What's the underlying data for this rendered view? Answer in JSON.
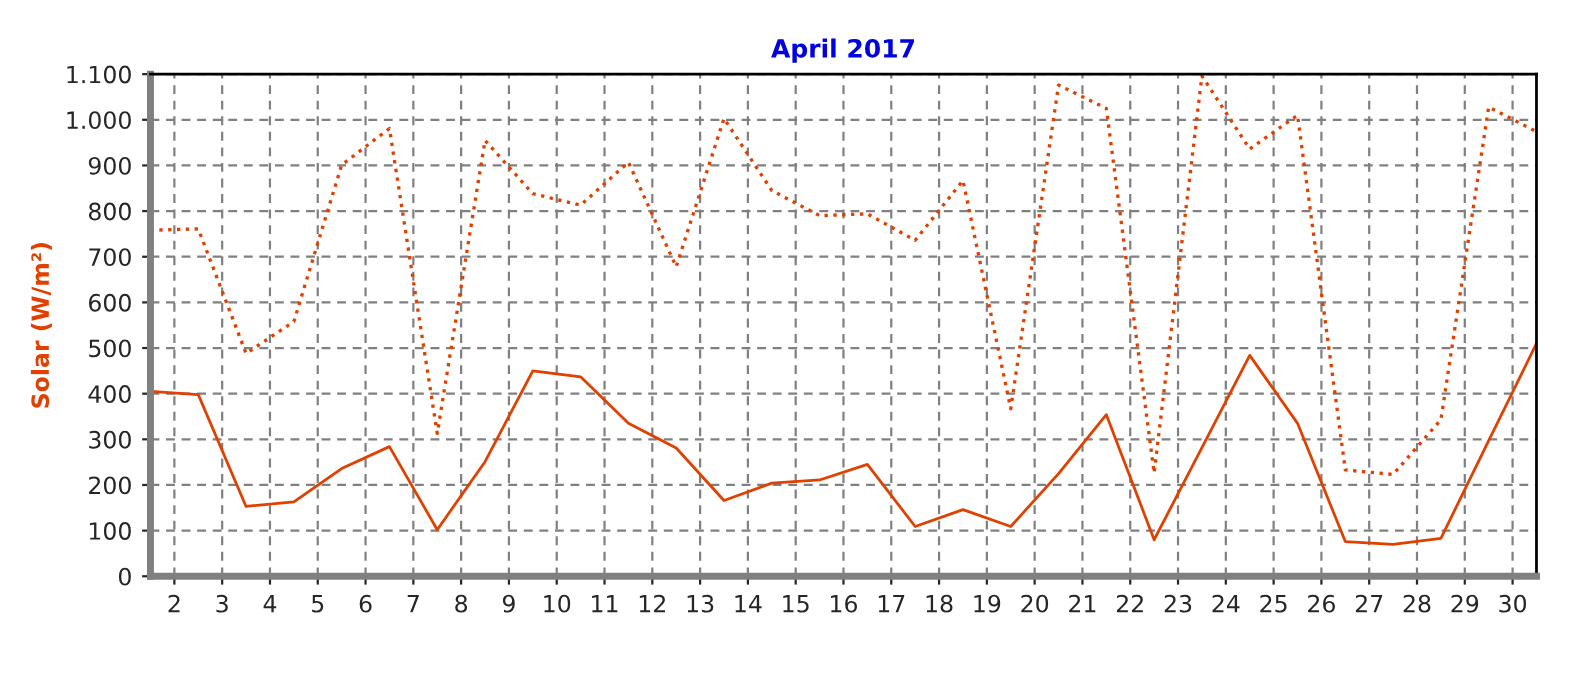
{
  "chart_data": {
    "type": "line",
    "title": "April 2017",
    "ylabel": "Solar (W/m²)",
    "x": [
      1.5,
      2.5,
      3.5,
      4.5,
      5.5,
      6.5,
      7.5,
      8.5,
      9.5,
      10.5,
      11.5,
      12.5,
      13.5,
      14.5,
      15.5,
      16.5,
      17.5,
      18.5,
      19.5,
      20.5,
      21.5,
      22.5,
      23.5,
      24.5,
      25.5,
      26.5,
      27.5,
      28.5,
      29.5,
      30.5
    ],
    "series": [
      {
        "color": "#e04000",
        "line_style": "dotted",
        "values": [
          758,
          761,
          488,
          558,
          901,
          981,
          313,
          955,
          838,
          813,
          907,
          678,
          1003,
          845,
          790,
          794,
          736,
          867,
          367,
          1076,
          1025,
          226,
          1096,
          936,
          1010,
          233,
          223,
          343,
          1028,
          974
        ]
      },
      {
        "color": "#e04000",
        "line_style": "solid",
        "values": [
          405,
          398,
          153,
          163,
          236,
          284,
          102,
          251,
          450,
          437,
          335,
          281,
          166,
          204,
          211,
          245,
          109,
          146,
          109,
          225,
          354,
          80,
          282,
          484,
          335,
          76,
          70,
          83,
          297,
          510
        ]
      }
    ],
    "xlim": [
      1.5,
      30.5
    ],
    "xticks": [
      2,
      3,
      4,
      5,
      6,
      7,
      8,
      9,
      10,
      11,
      12,
      13,
      14,
      15,
      16,
      17,
      18,
      19,
      20,
      21,
      22,
      23,
      24,
      25,
      26,
      27,
      28,
      29,
      30
    ],
    "ylim": [
      0,
      1100
    ],
    "yticks": [
      0,
      100,
      200,
      300,
      400,
      500,
      600,
      700,
      800,
      900,
      {
        "value": 1000,
        "label": "1.000"
      },
      {
        "value": 1100,
        "label": "1.100"
      }
    ],
    "grid": true,
    "legend": false,
    "marker": "none"
  }
}
